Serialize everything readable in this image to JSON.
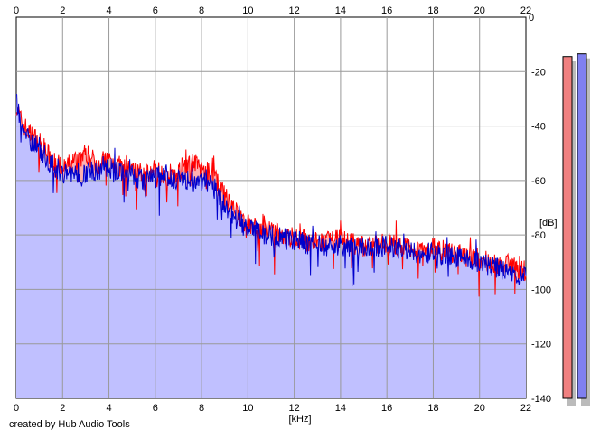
{
  "chart_data": {
    "type": "area",
    "xlabel": "[kHz]",
    "ylabel": "[dB]",
    "xlim": [
      0,
      22
    ],
    "ylim": [
      -140,
      0
    ],
    "x_ticks": [
      0,
      2,
      4,
      6,
      8,
      10,
      12,
      14,
      16,
      18,
      20,
      22
    ],
    "y_ticks": [
      -20,
      -40,
      -60,
      -80,
      -100,
      -120,
      -140
    ],
    "y_tick_labels": [
      "-20",
      "-40",
      "-60",
      "-80",
      "-100",
      "-120",
      "-140"
    ],
    "top_right_label": "0",
    "grid": true,
    "series": [
      {
        "channel": "left",
        "color": "#ff0000",
        "fill": "#ffb0b0",
        "x": [
          0,
          0.2,
          0.5,
          1,
          1.5,
          2,
          2.5,
          3,
          3.5,
          4,
          4.5,
          5,
          5.5,
          6,
          6.5,
          7,
          7.5,
          8,
          8.5,
          9,
          9.5,
          10,
          11,
          12,
          13,
          14,
          15,
          16,
          17,
          18,
          19,
          20,
          21,
          22
        ],
        "values": [
          -32,
          -38,
          -42,
          -46,
          -52,
          -56,
          -53,
          -50,
          -54,
          -52,
          -55,
          -55,
          -58,
          -56,
          -58,
          -57,
          -52,
          -56,
          -58,
          -66,
          -72,
          -76,
          -79,
          -81,
          -83,
          -82,
          -84,
          -83,
          -85,
          -85,
          -87,
          -89,
          -91,
          -93
        ]
      },
      {
        "channel": "right",
        "color": "#0000cc",
        "fill": "#c0c0ff",
        "x": [
          0,
          0.2,
          0.5,
          1,
          1.5,
          2,
          2.5,
          3,
          3.5,
          4,
          4.5,
          5,
          5.5,
          6,
          6.5,
          7,
          7.5,
          8,
          8.5,
          9,
          9.5,
          10,
          11,
          12,
          13,
          14,
          15,
          16,
          17,
          18,
          19,
          20,
          21,
          22
        ],
        "values": [
          -30,
          -40,
          -44,
          -48,
          -54,
          -57,
          -58,
          -57,
          -56,
          -55,
          -57,
          -58,
          -60,
          -59,
          -58,
          -60,
          -60,
          -60,
          -62,
          -70,
          -74,
          -78,
          -80,
          -82,
          -84,
          -84,
          -85,
          -84,
          -86,
          -87,
          -88,
          -90,
          -93,
          -96
        ]
      }
    ],
    "level_meters": [
      {
        "channel": "left",
        "color": "#f08080",
        "level_db": -14.5
      },
      {
        "channel": "right",
        "color": "#8080f0",
        "level_db": -13.5
      }
    ]
  },
  "footer": {
    "credit": "created by Hub Audio Tools"
  }
}
